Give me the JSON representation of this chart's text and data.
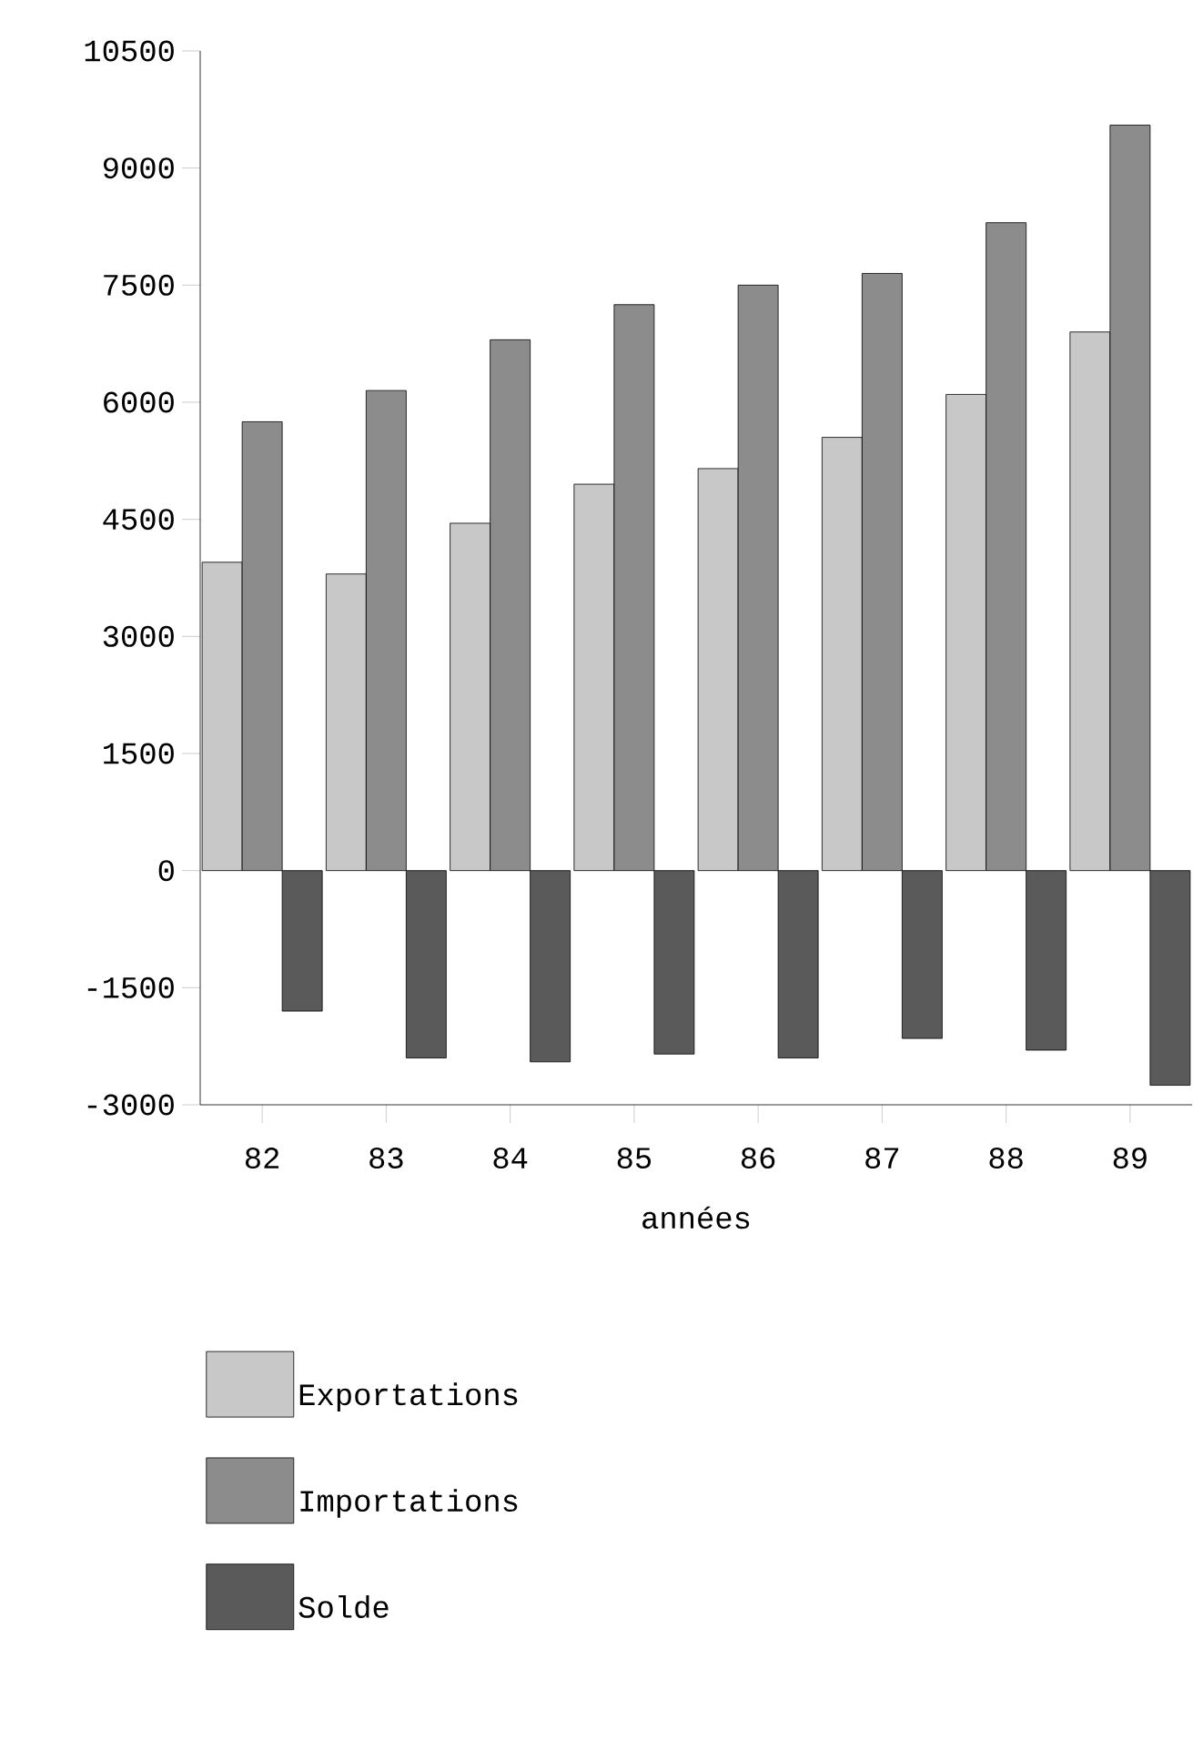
{
  "chart_data": {
    "type": "bar",
    "xlabel": "années",
    "categories": [
      "82",
      "83",
      "84",
      "85",
      "86",
      "87",
      "88",
      "89"
    ],
    "series": [
      {
        "name": "Exportations",
        "color": "#c8c8c8",
        "values": [
          3950,
          3800,
          4450,
          4950,
          5150,
          5550,
          6100,
          6900
        ]
      },
      {
        "name": "Importations",
        "color": "#8c8c8c",
        "values": [
          5750,
          6150,
          6800,
          7250,
          7500,
          7650,
          8300,
          9550
        ]
      },
      {
        "name": "Solde",
        "color": "#5a5a5a",
        "values": [
          -1800,
          -2400,
          -2450,
          -2350,
          -2400,
          -2150,
          -2300,
          -2750
        ]
      }
    ],
    "ylim": [
      -3000,
      10500
    ],
    "yticks": [
      -3000,
      -1500,
      0,
      1500,
      3000,
      4500,
      6000,
      7500,
      9000,
      10500
    ],
    "legend": "bottom",
    "grid": false
  }
}
